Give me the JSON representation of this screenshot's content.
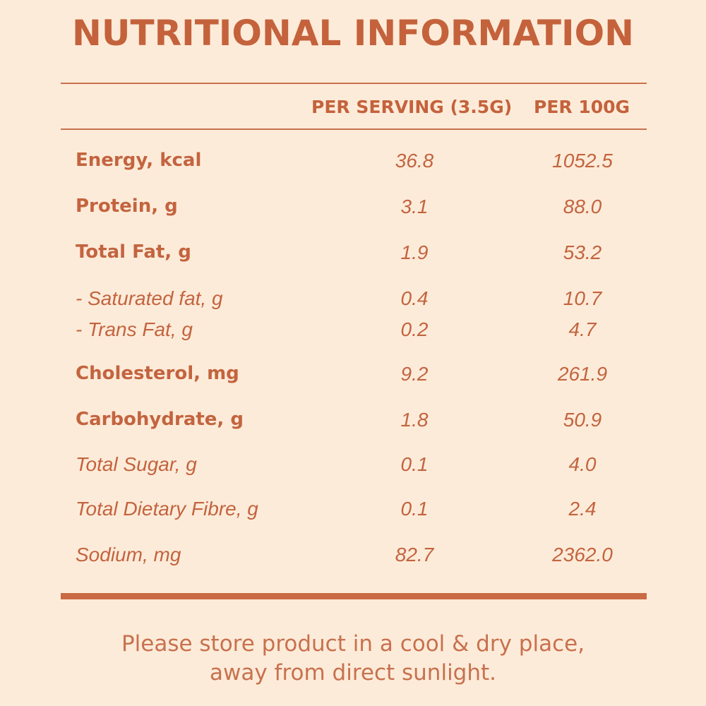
{
  "title": "NUTRITIONAL INFORMATION",
  "columns": {
    "per_serving": "PER SERVING (3.5G)",
    "per_100g": "PER 100G"
  },
  "rows": [
    {
      "label": "Energy, kcal",
      "per_serving": "36.8",
      "per_100g": "1052.5"
    },
    {
      "label": "Protein, g",
      "per_serving": "3.1",
      "per_100g": "88.0"
    },
    {
      "label": "Total Fat, g",
      "per_serving": "1.9",
      "per_100g": "53.2"
    },
    {
      "label": "- Saturated fat, g",
      "per_serving": "0.4",
      "per_100g": "10.7"
    },
    {
      "label": "- Trans Fat, g",
      "per_serving": "0.2",
      "per_100g": "4.7"
    },
    {
      "label": "Cholesterol, mg",
      "per_serving": "9.2",
      "per_100g": "261.9"
    },
    {
      "label": "Carbohydrate, g",
      "per_serving": "1.8",
      "per_100g": "50.9"
    },
    {
      "label": "Total Sugar, g",
      "per_serving": "0.1",
      "per_100g": "4.0"
    },
    {
      "label": "Total Dietary Fibre, g",
      "per_serving": "0.1",
      "per_100g": "2.4"
    },
    {
      "label": "Sodium, mg",
      "per_serving": "82.7",
      "per_100g": "2362.0"
    }
  ],
  "storage_note": {
    "line1": "Please store product in a cool & dry place,",
    "line2": "away from direct sunlight."
  },
  "colors": {
    "background": "#fdebd9",
    "accent": "#c4623c"
  }
}
